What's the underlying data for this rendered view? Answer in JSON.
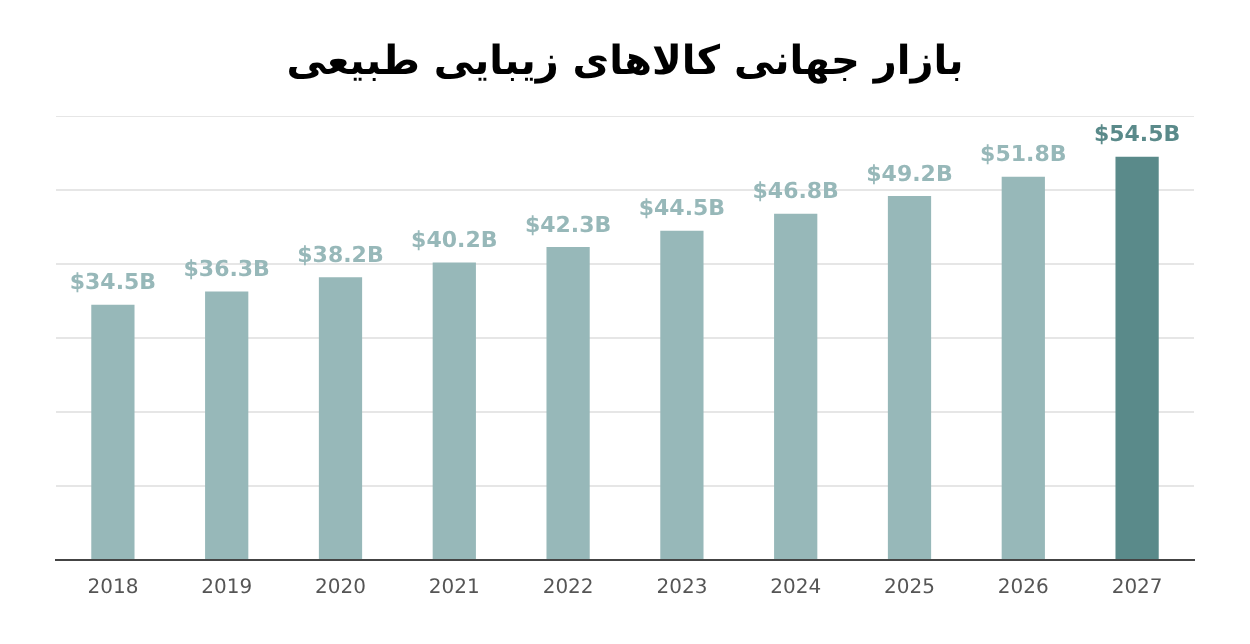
{
  "chart_data": {
    "type": "bar",
    "title": "بازار جهانی کالاهای زیبایی طبیعی",
    "categories": [
      "2018",
      "2019",
      "2020",
      "2021",
      "2022",
      "2023",
      "2024",
      "2025",
      "2026",
      "2027"
    ],
    "values": [
      34.5,
      36.3,
      38.2,
      40.2,
      42.3,
      44.5,
      46.8,
      49.2,
      51.8,
      54.5
    ],
    "value_labels": [
      "$34.5B",
      "$36.3B",
      "$38.2B",
      "$40.2B",
      "$42.3B",
      "$44.5B",
      "$46.8B",
      "$49.2B",
      "$51.8B",
      "$54.5B"
    ],
    "colors": [
      "#97b8b9",
      "#97b8b9",
      "#97b8b9",
      "#97b8b9",
      "#97b8b9",
      "#97b8b9",
      "#97b8b9",
      "#97b8b9",
      "#97b8b9",
      "#5a8a8a"
    ],
    "ylim": [
      0,
      60
    ],
    "yticks": [
      {
        "value": 0,
        "label": null
      },
      {
        "value": 10,
        "label": null
      },
      {
        "value": 20,
        "label": null
      },
      {
        "value": 30,
        "label": null
      },
      {
        "value": 40,
        "label": null
      },
      {
        "value": 50,
        "label": null
      },
      {
        "value": 60,
        "label": null
      }
    ],
    "grid": "y",
    "tick_labels": "x",
    "legend": false
  }
}
